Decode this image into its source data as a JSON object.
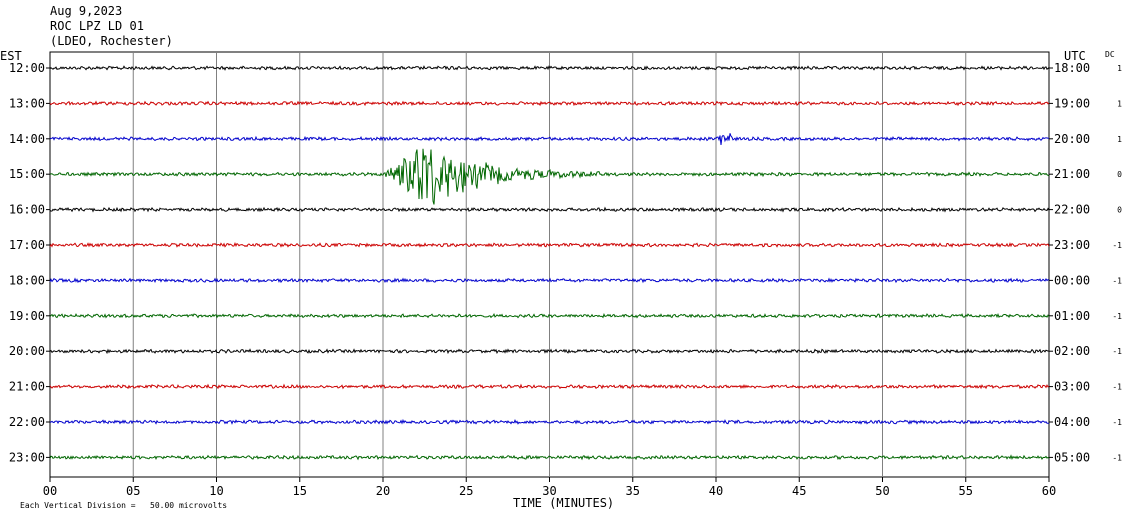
{
  "header": {
    "date": "Aug 9,2023",
    "station": "ROC LPZ LD 01",
    "network": "(LDEO, Rochester)"
  },
  "left_zone_label": "EST",
  "right_zone_label": "UTC",
  "dc_label": "DC",
  "footer": {
    "scale_note": "Each Vertical Division =   50.00 microvolts",
    "axis_title": "TIME (MINUTES)"
  },
  "colors": {
    "trace_cycle": [
      "#000000",
      "#cc0000",
      "#0000cc",
      "#006600"
    ],
    "grid": "#808080"
  },
  "chart_data": {
    "type": "line",
    "title": "",
    "xlabel": "TIME (MINUTES)",
    "xlim": [
      0,
      60
    ],
    "x_ticks": [
      "00",
      "05",
      "10",
      "15",
      "20",
      "25",
      "30",
      "35",
      "40",
      "45",
      "50",
      "55",
      "60"
    ],
    "grid": true,
    "rows": [
      {
        "est": "12:00",
        "utc": "18:00",
        "dc": "1"
      },
      {
        "est": "13:00",
        "utc": "19:00",
        "dc": "1"
      },
      {
        "est": "14:00",
        "utc": "20:00",
        "dc": "1"
      },
      {
        "est": "15:00",
        "utc": "21:00",
        "dc": "0"
      },
      {
        "est": "16:00",
        "utc": "22:00",
        "dc": "0"
      },
      {
        "est": "17:00",
        "utc": "23:00",
        "dc": "-1"
      },
      {
        "est": "18:00",
        "utc": "00:00",
        "dc": "-1"
      },
      {
        "est": "19:00",
        "utc": "01:00",
        "dc": "-1"
      },
      {
        "est": "20:00",
        "utc": "02:00",
        "dc": "-1"
      },
      {
        "est": "21:00",
        "utc": "03:00",
        "dc": "-1"
      },
      {
        "est": "22:00",
        "utc": "04:00",
        "dc": "-1"
      },
      {
        "est": "23:00",
        "utc": "05:00",
        "dc": "-1"
      }
    ],
    "events": [
      {
        "row": 2,
        "start_min": 40.0,
        "end_min": 41.0,
        "peak_amplitude": 0.5
      },
      {
        "row": 3,
        "start_min": 20.0,
        "end_min": 33.0,
        "peak_amplitude": 2.0
      }
    ]
  }
}
